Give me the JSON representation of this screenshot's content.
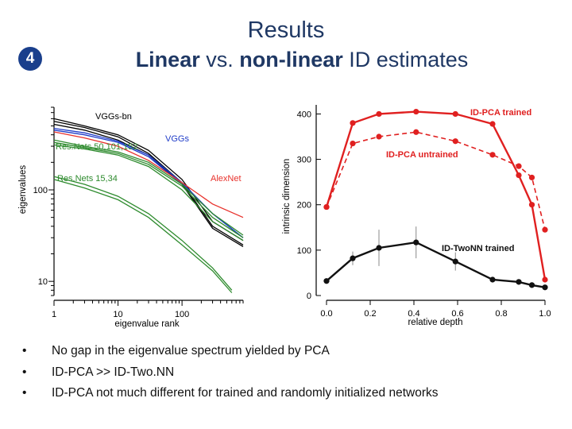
{
  "slide": {
    "title": "Results",
    "step_number": "4",
    "subtitle_parts": [
      "Linear",
      " vs. ",
      "non-linear",
      " ID estimates"
    ]
  },
  "chart_data": [
    {
      "type": "line",
      "xscale": "log",
      "yscale": "log",
      "xlabel": "eigenvalue rank",
      "ylabel": "eigenvalues",
      "xlim": [
        1,
        900
      ],
      "ylim": [
        7,
        800
      ],
      "xticks": [
        1,
        10,
        100
      ],
      "yticks": [
        10,
        100
      ],
      "annotations": [
        {
          "text": "VGGs-bn",
          "color": "#000000"
        },
        {
          "text": "VGGs",
          "color": "#1f3cc8"
        },
        {
          "text": "Res.Nets 50,101,152",
          "color": "#2e8b2e"
        },
        {
          "text": "AlexNet",
          "color": "#e8322c"
        },
        {
          "text": "Res.Nets 15,34",
          "color": "#2e8b2e"
        }
      ],
      "series": [
        {
          "color": "#000000",
          "x": [
            1,
            3,
            10,
            30,
            100,
            300,
            900
          ],
          "y": [
            560,
            480,
            380,
            250,
            120,
            40,
            25
          ]
        },
        {
          "color": "#000000",
          "x": [
            1,
            3,
            10,
            30,
            100,
            300,
            900
          ],
          "y": [
            600,
            500,
            400,
            270,
            130,
            45,
            28
          ]
        },
        {
          "color": "#000000",
          "x": [
            1,
            3,
            10,
            30,
            100,
            300,
            900
          ],
          "y": [
            520,
            450,
            350,
            240,
            115,
            38,
            24
          ]
        },
        {
          "color": "#1f3cc8",
          "x": [
            1,
            3,
            10,
            30,
            100,
            300,
            900
          ],
          "y": [
            470,
            420,
            340,
            240,
            120,
            55,
            30
          ]
        },
        {
          "color": "#1f3cc8",
          "x": [
            1,
            3,
            10,
            30,
            100,
            300,
            900
          ],
          "y": [
            450,
            400,
            330,
            230,
            115,
            55,
            30
          ]
        },
        {
          "color": "#e8322c",
          "x": [
            1,
            3,
            10,
            30,
            100,
            300,
            900
          ],
          "y": [
            430,
            370,
            300,
            210,
            120,
            70,
            50
          ]
        },
        {
          "color": "#2e8b2e",
          "x": [
            1,
            3,
            10,
            30,
            100,
            300,
            900
          ],
          "y": [
            330,
            290,
            250,
            190,
            110,
            50,
            30
          ]
        },
        {
          "color": "#2e8b2e",
          "x": [
            1,
            3,
            10,
            30,
            100,
            300,
            900
          ],
          "y": [
            310,
            280,
            240,
            180,
            100,
            45,
            28
          ]
        },
        {
          "color": "#2e8b2e",
          "x": [
            1,
            3,
            10,
            30,
            100,
            300,
            900
          ],
          "y": [
            350,
            300,
            260,
            200,
            115,
            55,
            32
          ]
        },
        {
          "color": "#2e8b2e",
          "x": [
            1,
            3,
            10,
            30,
            100,
            300,
            600
          ],
          "y": [
            140,
            115,
            85,
            55,
            28,
            14,
            8
          ]
        },
        {
          "color": "#2e8b2e",
          "x": [
            1,
            3,
            10,
            30,
            100,
            300,
            600
          ],
          "y": [
            130,
            105,
            78,
            50,
            25,
            13,
            7.5
          ]
        }
      ]
    },
    {
      "type": "line",
      "xlabel": "relative depth",
      "ylabel": "intrinsic dimension",
      "xlim": [
        0,
        1
      ],
      "ylim": [
        0,
        420
      ],
      "xticks": [
        0.0,
        0.2,
        0.4,
        0.6,
        0.8,
        1.0
      ],
      "xtick_labels": [
        "0.0",
        "0.2",
        "0.4",
        "0.6",
        "0.8",
        "1.0"
      ],
      "yticks": [
        0,
        100,
        200,
        300,
        400
      ],
      "series": [
        {
          "name": "ID-PCA trained",
          "color": "#e02020",
          "style": "solid",
          "x": [
            0.0,
            0.12,
            0.24,
            0.41,
            0.59,
            0.76,
            0.88,
            0.94,
            1.0
          ],
          "y": [
            195,
            380,
            400,
            405,
            400,
            378,
            265,
            200,
            35
          ]
        },
        {
          "name": "ID-PCA untrained",
          "color": "#e02020",
          "style": "dashed",
          "x": [
            0.0,
            0.12,
            0.24,
            0.41,
            0.59,
            0.76,
            0.88,
            0.94,
            1.0
          ],
          "y": [
            195,
            335,
            350,
            360,
            340,
            310,
            285,
            260,
            145
          ]
        },
        {
          "name": "ID-TwoNN trained",
          "color": "#111111",
          "style": "solid",
          "x": [
            0.0,
            0.12,
            0.24,
            0.41,
            0.59,
            0.76,
            0.88,
            0.94,
            1.0
          ],
          "y": [
            32,
            82,
            105,
            117,
            75,
            35,
            30,
            23,
            18
          ],
          "error": [
            0,
            15,
            40,
            35,
            20,
            5,
            5,
            5,
            5
          ]
        }
      ]
    }
  ],
  "bullets": [
    "No gap in the eigenvalue spectrum yielded by PCA",
    "ID-PCA >> ID-Two.NN",
    "ID-PCA not much different for trained and randomly initialized networks"
  ]
}
